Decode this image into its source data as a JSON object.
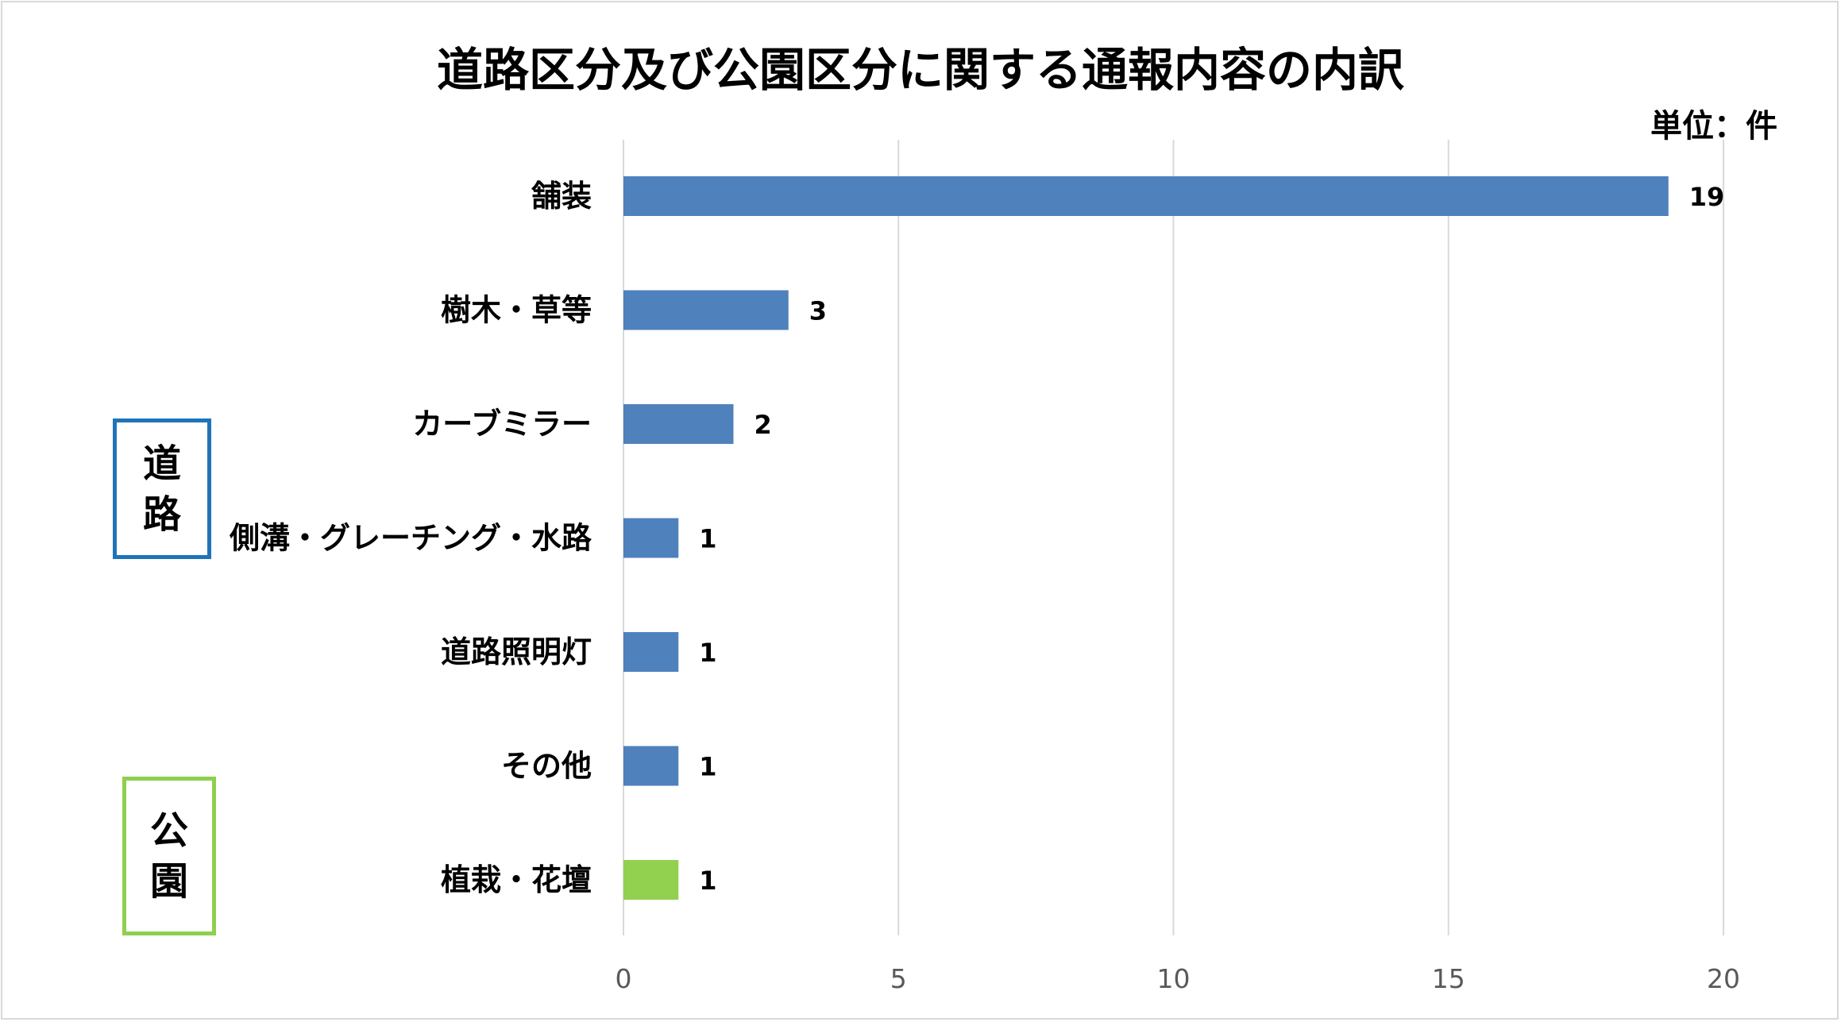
{
  "chart_data": {
    "type": "bar",
    "orientation": "horizontal",
    "title": "道路区分及び公園区分に関する通報内容の内訳",
    "unit_label": "単位：件",
    "categories": [
      "舗装",
      "樹木・草等",
      "カーブミラー",
      "側溝・グレーチング・水路",
      "道路照明灯",
      "その他",
      "植栽・花壇"
    ],
    "values": [
      19,
      3,
      2,
      1,
      1,
      1,
      1
    ],
    "bar_colors": [
      "#4f81bd",
      "#4f81bd",
      "#4f81bd",
      "#4f81bd",
      "#4f81bd",
      "#4f81bd",
      "#92d050"
    ],
    "xlim": [
      0,
      20
    ],
    "x_ticks": [
      0,
      5,
      10,
      15,
      20
    ],
    "grid": true,
    "groups": [
      {
        "chars": [
          "道",
          "路"
        ],
        "color": "#1f74b9",
        "categories": [
          "舗装",
          "樹木・草等",
          "カーブミラー",
          "側溝・グレーチング・水路",
          "道路照明灯",
          "その他"
        ]
      },
      {
        "chars": [
          "公",
          "園"
        ],
        "color": "#8fcf4f",
        "categories": [
          "植栽・花壇"
        ]
      }
    ]
  }
}
